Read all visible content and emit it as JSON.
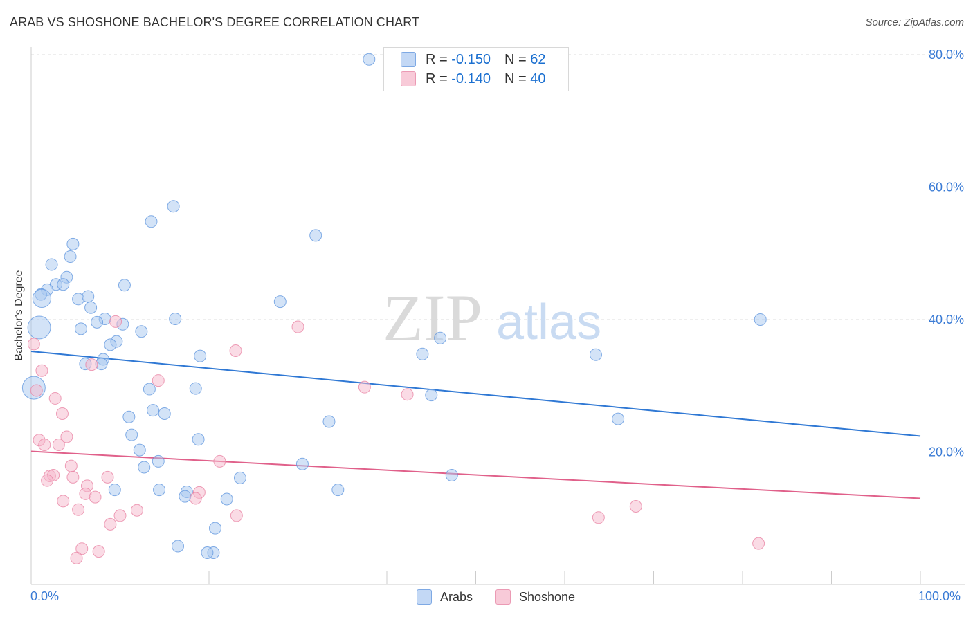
{
  "header": {
    "title": "ARAB VS SHOSHONE BACHELOR'S DEGREE CORRELATION CHART",
    "source": "Source: ZipAtlas.com"
  },
  "watermark": {
    "zip": "ZIP",
    "atlas": "atlas"
  },
  "legend": {
    "r_label": "R =",
    "n_label": "N =",
    "arabs": {
      "r": "-0.150",
      "n": "62",
      "color": "#a8c8f0"
    },
    "shoshone": {
      "r": "-0.140",
      "n": "40",
      "color": "#f5b8cb"
    }
  },
  "bottom_legend": {
    "arabs": "Arabs",
    "shoshone": "Shoshone"
  },
  "chart_data": {
    "type": "scatter",
    "title": "ARAB VS SHOSHONE BACHELOR'S DEGREE CORRELATION CHART",
    "xlabel": "",
    "ylabel": "Bachelor's Degree",
    "xlim": [
      0,
      100
    ],
    "ylim": [
      0,
      82
    ],
    "x_tick_labels": [
      "0.0%",
      "100.0%"
    ],
    "y_ticks": [
      20,
      40,
      60,
      80
    ],
    "y_tick_labels": [
      "20.0%",
      "40.0%",
      "60.0%",
      "80.0%"
    ],
    "grid": true,
    "legend_position": "top-center",
    "series": [
      {
        "name": "Arabs",
        "color": "#5b93dd",
        "fill": "#a8c8f0",
        "trend": {
          "y_at_x0": 35.2,
          "y_at_x100": 22.4,
          "color": "#2f78d4"
        },
        "points": [
          [
            38,
            79.3,
            1
          ],
          [
            16,
            57.1,
            1
          ],
          [
            13.5,
            54.8,
            1
          ],
          [
            32,
            52.7,
            1
          ],
          [
            4.7,
            51.4,
            1
          ],
          [
            4.4,
            49.5,
            1
          ],
          [
            2.3,
            48.3,
            1
          ],
          [
            4,
            46.4,
            1
          ],
          [
            2.8,
            45.3,
            1
          ],
          [
            3.6,
            45.3,
            1
          ],
          [
            10.5,
            45.2,
            1
          ],
          [
            1.8,
            44.5,
            1
          ],
          [
            1.1,
            43.8,
            1
          ],
          [
            1.2,
            43.2,
            2
          ],
          [
            5.3,
            43.1,
            1
          ],
          [
            6.4,
            43.5,
            1
          ],
          [
            28,
            42.7,
            1
          ],
          [
            6.7,
            41.8,
            1
          ],
          [
            8.3,
            40.1,
            1
          ],
          [
            16.2,
            40.1,
            1
          ],
          [
            82,
            40.0,
            1
          ],
          [
            7.4,
            39.6,
            1
          ],
          [
            10.3,
            39.3,
            1
          ],
          [
            0.9,
            38.8,
            2.5
          ],
          [
            5.6,
            38.6,
            1
          ],
          [
            12.4,
            38.2,
            1
          ],
          [
            46,
            37.2,
            1
          ],
          [
            9.6,
            36.7,
            1
          ],
          [
            8.9,
            36.2,
            1
          ],
          [
            44,
            34.8,
            1
          ],
          [
            63.5,
            34.7,
            1
          ],
          [
            19,
            34.5,
            1
          ],
          [
            8.1,
            34.0,
            1
          ],
          [
            6.1,
            33.3,
            1
          ],
          [
            7.9,
            33.3,
            1
          ],
          [
            0.3,
            29.7,
            2.5
          ],
          [
            13.3,
            29.5,
            1
          ],
          [
            18.5,
            29.6,
            1
          ],
          [
            45,
            28.6,
            1
          ],
          [
            15,
            25.8,
            1
          ],
          [
            13.7,
            26.3,
            1
          ],
          [
            11,
            25.3,
            1
          ],
          [
            66,
            25.0,
            1
          ],
          [
            33.5,
            24.6,
            1
          ],
          [
            11.3,
            22.6,
            1
          ],
          [
            18.8,
            21.9,
            1
          ],
          [
            12.2,
            20.3,
            1
          ],
          [
            14.3,
            18.6,
            1
          ],
          [
            30.5,
            18.2,
            1
          ],
          [
            12.7,
            17.7,
            1
          ],
          [
            47.3,
            16.5,
            1
          ],
          [
            23.5,
            16.1,
            1
          ],
          [
            9.4,
            14.3,
            1
          ],
          [
            14.4,
            14.3,
            1
          ],
          [
            34.5,
            14.3,
            1
          ],
          [
            17.5,
            14.0,
            1
          ],
          [
            17.3,
            13.3,
            1
          ],
          [
            22,
            12.9,
            1
          ],
          [
            20.7,
            8.5,
            1
          ],
          [
            16.5,
            5.8,
            1
          ],
          [
            20.5,
            4.8,
            1
          ],
          [
            19.8,
            4.8,
            1
          ]
        ]
      },
      {
        "name": "Shoshone",
        "color": "#e87fa0",
        "fill": "#f5b8cb",
        "trend": {
          "y_at_x0": 20.1,
          "y_at_x100": 13.0,
          "color": "#e0608a"
        },
        "points": [
          [
            0.3,
            36.3,
            1
          ],
          [
            9.5,
            39.7,
            1
          ],
          [
            30,
            38.9,
            1
          ],
          [
            23,
            35.3,
            1
          ],
          [
            1.2,
            32.3,
            1
          ],
          [
            6.8,
            33.2,
            1
          ],
          [
            14.3,
            30.8,
            1
          ],
          [
            0.6,
            29.3,
            1
          ],
          [
            37.5,
            29.8,
            1
          ],
          [
            42.3,
            28.7,
            1
          ],
          [
            2.7,
            28.1,
            1
          ],
          [
            3.5,
            25.8,
            1
          ],
          [
            0.9,
            21.8,
            1
          ],
          [
            4,
            22.3,
            1
          ],
          [
            1.5,
            21.1,
            1
          ],
          [
            3.1,
            21.1,
            1
          ],
          [
            21.2,
            18.6,
            1
          ],
          [
            4.5,
            17.9,
            1
          ],
          [
            2.1,
            16.4,
            1
          ],
          [
            2.5,
            16.5,
            1
          ],
          [
            1.8,
            15.7,
            1
          ],
          [
            4.7,
            16.2,
            1
          ],
          [
            8.6,
            16.2,
            1
          ],
          [
            6.3,
            14.9,
            1
          ],
          [
            6.1,
            13.7,
            1
          ],
          [
            18.9,
            13.9,
            1
          ],
          [
            7.2,
            13.2,
            1
          ],
          [
            18.5,
            13.0,
            1
          ],
          [
            3.6,
            12.6,
            1
          ],
          [
            5.3,
            11.3,
            1
          ],
          [
            11.9,
            11.2,
            1
          ],
          [
            68,
            11.8,
            1
          ],
          [
            10,
            10.4,
            1
          ],
          [
            23.1,
            10.4,
            1
          ],
          [
            63.8,
            10.1,
            1
          ],
          [
            8.9,
            9.1,
            1
          ],
          [
            81.8,
            6.2,
            1
          ],
          [
            5.7,
            5.4,
            1
          ],
          [
            7.6,
            5.0,
            1
          ],
          [
            5.1,
            4.0,
            1
          ]
        ]
      }
    ]
  }
}
